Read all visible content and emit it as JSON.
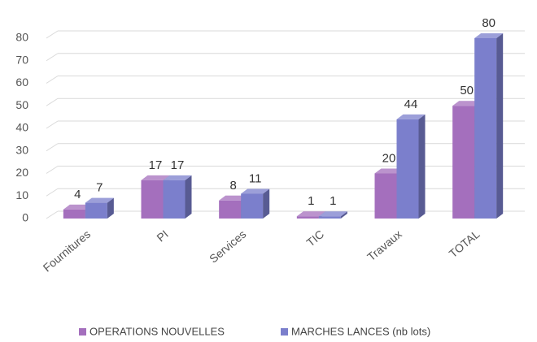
{
  "chart_data": {
    "type": "bar3d",
    "categories": [
      "Fournitures",
      "PI",
      "Services",
      "TIC",
      "Travaux",
      "TOTAL"
    ],
    "series": [
      {
        "name": "OPERATIONS NOUVELLES",
        "color": "#a46fbd",
        "values": [
          4,
          17,
          8,
          1,
          20,
          50
        ]
      },
      {
        "name": "MARCHES LANCES (nb lots)",
        "color": "#7b7fcc",
        "values": [
          7,
          17,
          11,
          1,
          44,
          80
        ]
      }
    ],
    "ylim": [
      0,
      80
    ],
    "yticks": [
      0,
      10,
      20,
      30,
      40,
      50,
      60,
      70,
      80
    ],
    "grid": true,
    "legend": "bottom"
  }
}
